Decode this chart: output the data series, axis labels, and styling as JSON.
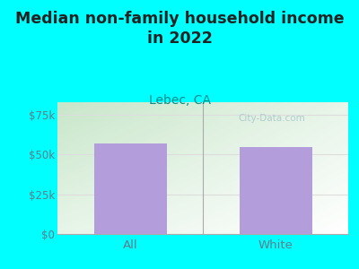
{
  "title": "Median non-family household income\nin 2022",
  "subtitle": "Lebec, CA",
  "categories": [
    "All",
    "White"
  ],
  "values": [
    57000,
    55000
  ],
  "bar_color": "#b39ddb",
  "bg_outer": "#00ffff",
  "title_fontsize": 12.5,
  "subtitle_fontsize": 10,
  "title_color": "#222222",
  "subtitle_color": "#008b8b",
  "tick_color": "#607d8b",
  "yticks": [
    0,
    25000,
    50000,
    75000
  ],
  "ytick_labels": [
    "$0",
    "$25k",
    "$50k",
    "$75k"
  ],
  "ylim": [
    0,
    83000
  ],
  "watermark": "City-Data.com",
  "grid_color": "#dddddd",
  "plot_bg_colors": [
    "#c8e6c9",
    "#ffffff"
  ],
  "bar_separator_color": "#aaaaaa"
}
